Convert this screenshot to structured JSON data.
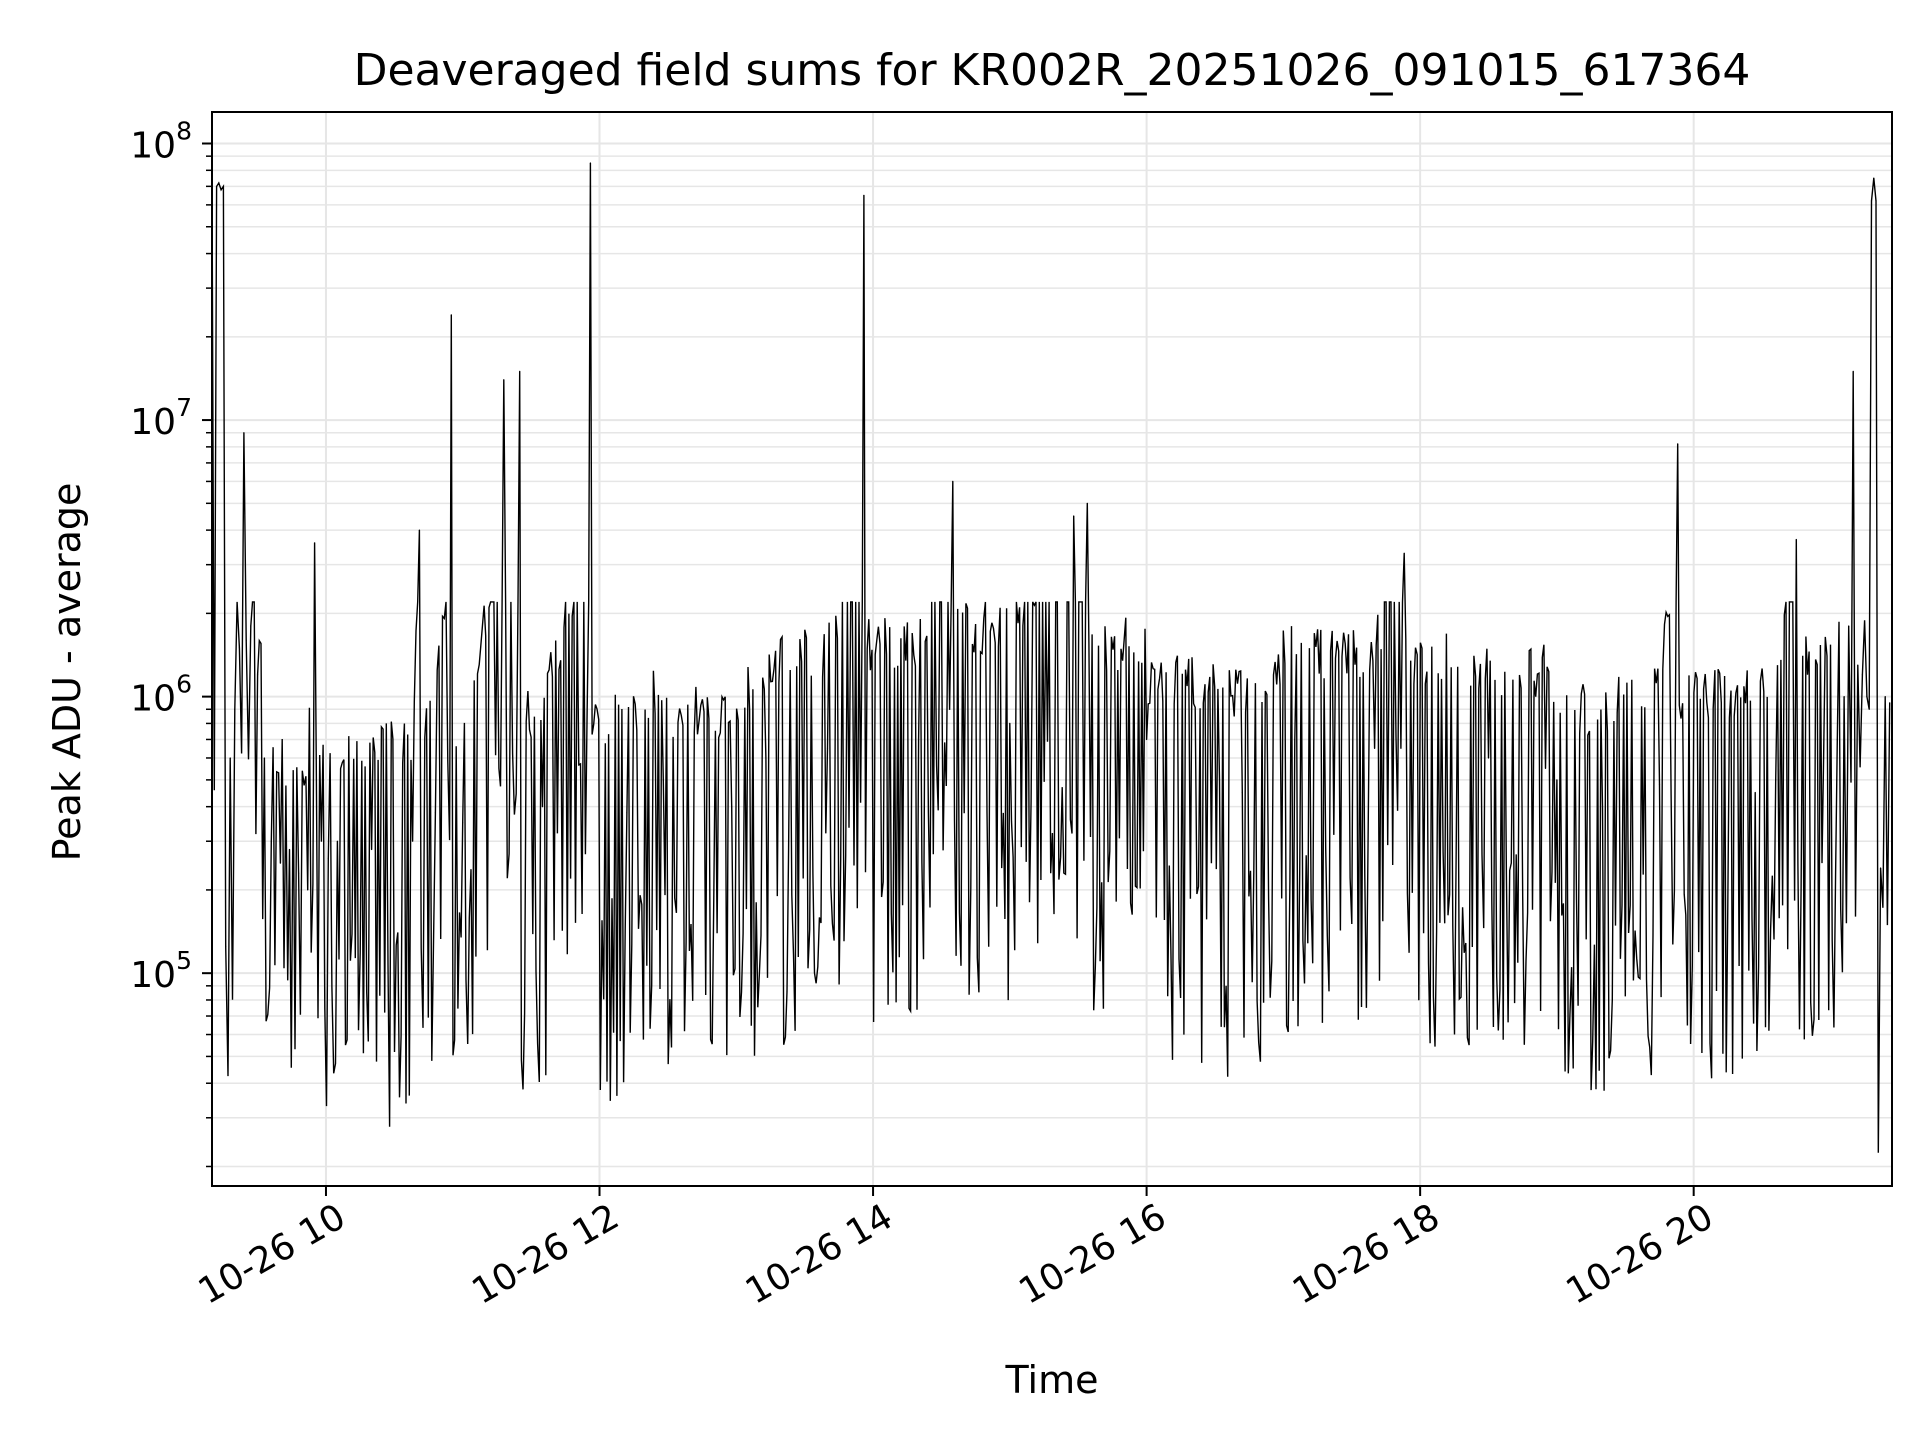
{
  "chart_data": {
    "type": "line",
    "title": "Deaveraged field sums for KR002R_20251026_091015_617364",
    "xlabel": "Time",
    "ylabel": "Peak ADU - average",
    "yscale": "log",
    "ylim": [
      17000,
      130000000
    ],
    "xlim": [
      "2025-10-26T09:10:00",
      "2025-10-26T21:27:00"
    ],
    "x_ticks": [
      {
        "value": "2025-10-26T10:00:00",
        "label": "10-26 10"
      },
      {
        "value": "2025-10-26T12:00:00",
        "label": "10-26 12"
      },
      {
        "value": "2025-10-26T14:00:00",
        "label": "10-26 14"
      },
      {
        "value": "2025-10-26T16:00:00",
        "label": "10-26 16"
      },
      {
        "value": "2025-10-26T18:00:00",
        "label": "10-26 18"
      },
      {
        "value": "2025-10-26T20:00:00",
        "label": "10-26 20"
      }
    ],
    "y_ticks": [
      {
        "value": 100000,
        "base": "10",
        "exp": "5"
      },
      {
        "value": 1000000,
        "base": "10",
        "exp": "6"
      },
      {
        "value": 10000000,
        "base": "10",
        "exp": "7"
      },
      {
        "value": 100000000,
        "base": "10",
        "exp": "8"
      }
    ],
    "grid": true,
    "line_color": "#000000",
    "grid_color": "#e6e6e6",
    "series": [
      {
        "x": [
          "2025-10-26T09:10:00",
          "2025-10-26T09:12:00",
          "2025-10-26T09:13:00",
          "2025-10-26T09:14:00",
          "2025-10-26T09:15:00",
          "2025-10-26T09:16:00",
          "2025-10-26T09:18:00",
          "2025-10-26T09:20:00",
          "2025-10-26T09:22:00",
          "2025-10-26T09:24:00",
          "2025-10-26T09:25:00",
          "2025-10-26T09:27:00",
          "2025-10-26T09:30:00",
          "2025-10-26T09:33:00",
          "2025-10-26T09:36:00",
          "2025-10-26T09:40:00",
          "2025-10-26T09:44:00",
          "2025-10-26T09:48:00",
          "2025-10-26T09:52:00",
          "2025-10-26T09:55:00",
          "2025-10-26T09:58:00",
          "2025-10-26T10:01:00",
          "2025-10-26T10:05:00",
          "2025-10-26T10:20:00",
          "2025-10-26T10:38:00",
          "2025-10-26T10:41:00",
          "2025-10-26T10:48:00",
          "2025-10-26T10:55:00",
          "2025-10-26T11:00:00",
          "2025-10-26T11:18:00",
          "2025-10-26T11:25:00",
          "2025-10-26T11:35:00",
          "2025-10-26T11:56:00",
          "2025-10-26T12:12:00",
          "2025-10-26T12:28:00",
          "2025-10-26T12:58:00",
          "2025-10-26T13:13:00",
          "2025-10-26T13:40:00",
          "2025-10-26T13:56:00",
          "2025-10-26T14:20:00",
          "2025-10-26T14:35:00",
          "2025-10-26T15:00:00",
          "2025-10-26T15:28:00",
          "2025-10-26T15:34:00",
          "2025-10-26T16:00:00",
          "2025-10-26T16:32:00",
          "2025-10-26T16:42:00",
          "2025-10-26T17:05:00",
          "2025-10-26T17:40:00",
          "2025-10-26T17:53:00",
          "2025-10-26T18:30:00",
          "2025-10-26T18:55:00",
          "2025-10-26T19:00:00",
          "2025-10-26T19:20:00",
          "2025-10-26T19:45:00",
          "2025-10-26T19:53:00",
          "2025-10-26T20:27:00",
          "2025-10-26T20:36:00",
          "2025-10-26T20:45:00",
          "2025-10-26T20:57:00",
          "2025-10-26T21:03:00",
          "2025-10-26T21:06:00",
          "2025-10-26T21:08:00",
          "2025-10-26T21:10:00",
          "2025-10-26T21:12:00",
          "2025-10-26T21:14:00",
          "2025-10-26T21:16:00",
          "2025-10-26T21:17:00",
          "2025-10-26T21:18:00",
          "2025-10-26T21:19:00",
          "2025-10-26T21:20:00",
          "2025-10-26T21:22:00",
          "2025-10-26T21:24:00",
          "2025-10-26T21:26:00"
        ],
        "y": [
          75000000,
          70000000,
          72000000,
          68000000,
          70000000,
          125000,
          600000,
          900000,
          1500000,
          9000000,
          1600000,
          1800000,
          1200000,
          600000,
          300000,
          250000,
          280000,
          230000,
          200000,
          3600000,
          300000,
          260000,
          300000,
          280000,
          300000,
          4000000,
          380000,
          24000000,
          350000,
          14000000,
          15000000,
          400000,
          85000000,
          380000,
          500000,
          400000,
          600000,
          650000,
          65000000,
          700000,
          6000000,
          800000,
          4500000,
          5000000,
          700000,
          500000,
          450000,
          700000,
          650000,
          3300000,
          600000,
          550000,
          500000,
          400000,
          480000,
          8200000,
          450000,
          500000,
          3700000,
          600000,
          700000,
          1000000,
          1800000,
          15000000,
          1300000,
          1200000,
          1000000,
          900000,
          62000000,
          75000000,
          62000000,
          240000,
          1000000,
          950000
        ]
      }
    ]
  }
}
